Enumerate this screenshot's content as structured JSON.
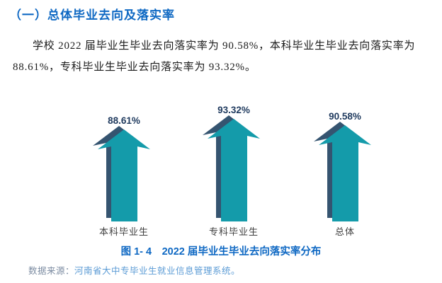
{
  "page": {
    "background": "#ffffff"
  },
  "heading": {
    "text": "（一）总体毕业去向及落实率",
    "color": "#0e68c3"
  },
  "paragraph": {
    "line1": "学校 2022 届毕业生毕业去向落实率为 90.58%，本科毕业生毕业去向落实率为",
    "line2": "88.61%，专科毕业生毕业去向落实率为 93.32%。"
  },
  "chart_data": {
    "type": "bar",
    "variant": "3d-upward-arrow-pictogram",
    "categories": [
      "本科毕业生",
      "专科毕业生",
      "总体"
    ],
    "values": [
      88.61,
      93.32,
      90.58
    ],
    "value_labels": [
      "88.61%",
      "93.32%",
      "90.58%"
    ],
    "title": "2022 届毕业生毕业去向落实率分布",
    "xlabel": "",
    "ylabel": "",
    "grid": false,
    "legend": false,
    "colors": {
      "arrow_front": "#149baa",
      "arrow_side": "#355470",
      "value_label": "#1f3a5e",
      "category_label": "#3f3f3f"
    }
  },
  "caption": {
    "text": "图 1- 4　2022 届毕业生毕业去向落实率分布",
    "color": "#0e68c3"
  },
  "source": {
    "label": "数据来源：",
    "text": "河南省大中专毕业生就业信息管理系统。"
  }
}
